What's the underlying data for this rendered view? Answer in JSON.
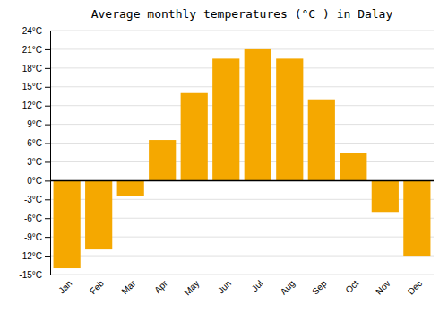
{
  "chart_data": {
    "type": "bar",
    "title": "Average monthly temperatures (°C ) in Dalay",
    "categories": [
      "Jan",
      "Feb",
      "Mar",
      "Apr",
      "May",
      "Jun",
      "Jul",
      "Aug",
      "Sep",
      "Oct",
      "Nov",
      "Dec"
    ],
    "values": [
      -14,
      -11,
      -2.5,
      6.5,
      14,
      19.5,
      21,
      19.5,
      13,
      4.5,
      -5,
      -12
    ],
    "color": "#F5A800",
    "ylim": [
      -15,
      24
    ],
    "yticks": [
      {
        "value": -15,
        "label": "-15°C"
      },
      {
        "value": -12,
        "label": "-12°C"
      },
      {
        "value": -9,
        "label": "-9°C"
      },
      {
        "value": -6,
        "label": "-6°C"
      },
      {
        "value": -3,
        "label": "-3°C"
      },
      {
        "value": 0,
        "label": "0°C"
      },
      {
        "value": 3,
        "label": "3°C"
      },
      {
        "value": 6,
        "label": "6°C"
      },
      {
        "value": 9,
        "label": "9°C"
      },
      {
        "value": 12,
        "label": "12°C"
      },
      {
        "value": 15,
        "label": "15°C"
      },
      {
        "value": 18,
        "label": "18°C"
      },
      {
        "value": 21,
        "label": "21°C"
      },
      {
        "value": 24,
        "label": "24°C"
      }
    ],
    "grid": true
  }
}
